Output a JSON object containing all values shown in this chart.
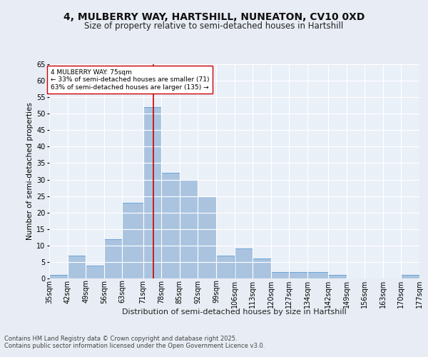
{
  "title1": "4, MULBERRY WAY, HARTSHILL, NUNEATON, CV10 0XD",
  "title2": "Size of property relative to semi-detached houses in Hartshill",
  "xlabel": "Distribution of semi-detached houses by size in Hartshill",
  "ylabel": "Number of semi-detached properties",
  "footer": "Contains HM Land Registry data © Crown copyright and database right 2025.\nContains public sector information licensed under the Open Government Licence v3.0.",
  "bin_labels": [
    "35sqm",
    "42sqm",
    "49sqm",
    "56sqm",
    "63sqm",
    "71sqm",
    "78sqm",
    "85sqm",
    "92sqm",
    "99sqm",
    "106sqm",
    "113sqm",
    "120sqm",
    "127sqm",
    "134sqm",
    "142sqm",
    "149sqm",
    "156sqm",
    "163sqm",
    "170sqm",
    "177sqm"
  ],
  "bin_edges": [
    35,
    42,
    49,
    56,
    63,
    71,
    78,
    85,
    92,
    99,
    106,
    113,
    120,
    127,
    134,
    142,
    149,
    156,
    163,
    170,
    177
  ],
  "bar_heights": [
    1,
    7,
    4,
    12,
    23,
    52,
    32,
    30,
    25,
    7,
    9,
    6,
    2,
    2,
    2,
    1,
    0,
    0,
    0,
    1
  ],
  "bar_color": "#aac4e0",
  "bar_edgecolor": "#5b9bd5",
  "property_size": 75,
  "redline_x": 75,
  "annotation_text": "4 MULBERRY WAY: 75sqm\n← 33% of semi-detached houses are smaller (71)\n63% of semi-detached houses are larger (135) →",
  "annotation_box_color": "#ffffff",
  "annotation_box_edgecolor": "#cc0000",
  "ylim": [
    0,
    65
  ],
  "yticks": [
    0,
    5,
    10,
    15,
    20,
    25,
    30,
    35,
    40,
    45,
    50,
    55,
    60,
    65
  ],
  "background_color": "#e8edf5",
  "plot_bg_color": "#eaf0f8",
  "grid_color": "#ffffff",
  "title1_fontsize": 10,
  "title2_fontsize": 8.5,
  "xlabel_fontsize": 8,
  "ylabel_fontsize": 7.5,
  "tick_fontsize": 7,
  "annotation_fontsize": 6.5,
  "footer_fontsize": 6
}
